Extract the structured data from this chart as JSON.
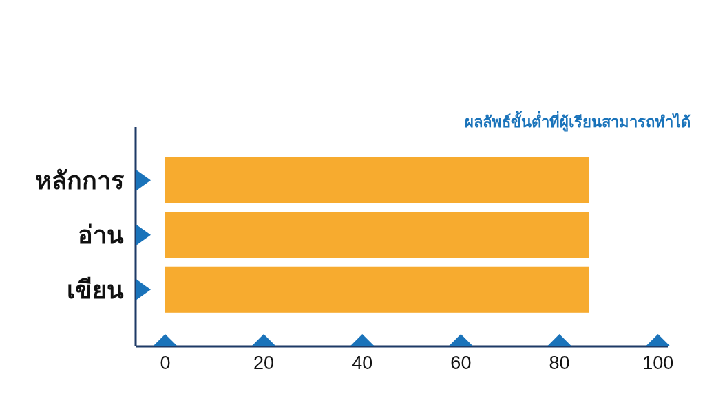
{
  "chart_data": {
    "type": "bar",
    "orientation": "horizontal",
    "title": "ผลลัพธ์ขั้นต่ำที่ผู้เรียนสามารถทำได้",
    "categories": [
      "หลักการ",
      "อ่าน",
      "เขียน"
    ],
    "series": [
      {
        "color": "#f7ab2f",
        "values": [
          86,
          86,
          86
        ]
      }
    ],
    "xlim": [
      -6,
      102
    ],
    "xticks": [
      0,
      20,
      40,
      60,
      80,
      100
    ]
  }
}
